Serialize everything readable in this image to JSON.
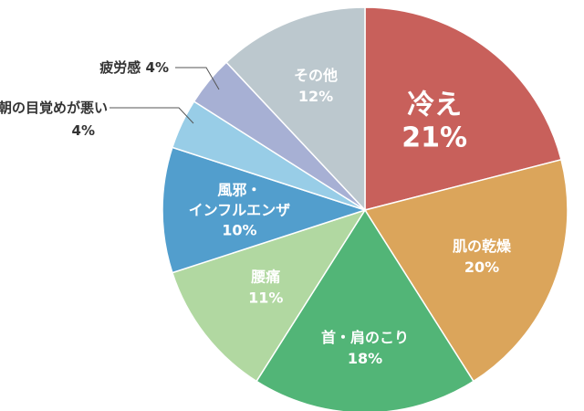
{
  "chart_data": {
    "type": "pie",
    "start": "12 o'clock",
    "direction": "clockwise",
    "slices": [
      {
        "label": "冷え",
        "value": 21,
        "value_text": "21%",
        "color": "#c8605b"
      },
      {
        "label": "肌の乾燥",
        "value": 20,
        "value_text": "20%",
        "color": "#dba55b"
      },
      {
        "label": "首・肩のこり",
        "value": 18,
        "value_text": "18%",
        "color": "#52b577"
      },
      {
        "label": "腰痛",
        "value": 11,
        "value_text": "11%",
        "color": "#b1d8a1"
      },
      {
        "label": "風邪・",
        "label2": "インフルエンザ",
        "value": 10,
        "value_text": "10%",
        "color": "#529ecd"
      },
      {
        "label": "朝の目覚めが悪い",
        "value": 4,
        "value_text": "4%",
        "color": "#98cde7"
      },
      {
        "label": "疲労感",
        "value": 4,
        "value_text": "4%",
        "color": "#a7b0d4"
      },
      {
        "label": "その他",
        "value": 12,
        "value_text": "12%",
        "color": "#bcc8ce"
      }
    ]
  }
}
